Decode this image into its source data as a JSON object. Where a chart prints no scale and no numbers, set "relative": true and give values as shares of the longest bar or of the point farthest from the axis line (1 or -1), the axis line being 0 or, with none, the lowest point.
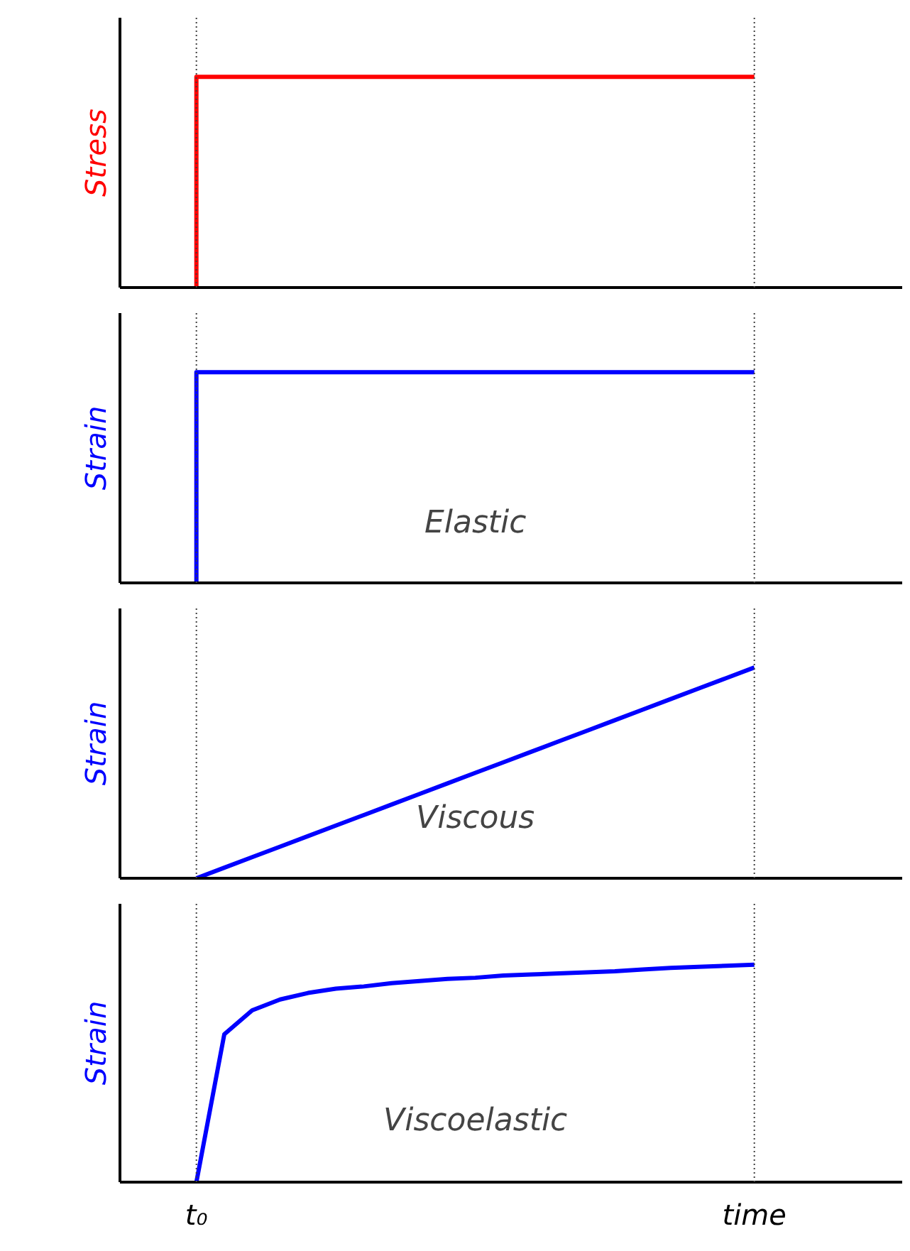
{
  "chart_data": [
    {
      "type": "step",
      "relative": true,
      "ylabel": "Stress",
      "categories": [
        "t₀",
        null,
        null,
        null,
        null,
        null,
        null,
        null,
        null,
        null,
        null,
        null,
        null,
        null,
        null,
        null,
        null,
        null,
        null,
        null,
        "time"
      ],
      "tick_labels": false,
      "series": [
        {
          "color": "#ff0000",
          "values": [
            0,
            1,
            1,
            1,
            1,
            1,
            1,
            1,
            1,
            1,
            1,
            1,
            1,
            1,
            1,
            1,
            1,
            1,
            1,
            1,
            1
          ]
        }
      ],
      "ref_lines": [
        {
          "axis": "x",
          "value": "t₀",
          "color": "#404040",
          "line_style": "dotted"
        },
        {
          "axis": "x",
          "value": "time",
          "color": "#404040",
          "line_style": "dotted"
        }
      ]
    },
    {
      "type": "step",
      "relative": true,
      "ylabel": "Strain",
      "categories": [
        "t₀",
        null,
        null,
        null,
        null,
        null,
        null,
        null,
        null,
        null,
        null,
        null,
        null,
        null,
        null,
        null,
        null,
        null,
        null,
        null,
        "time"
      ],
      "tick_labels": false,
      "annotations": [
        "Elastic"
      ],
      "series": [
        {
          "color": "#0000ff",
          "values": [
            0,
            1,
            1,
            1,
            1,
            1,
            1,
            1,
            1,
            1,
            1,
            1,
            1,
            1,
            1,
            1,
            1,
            1,
            1,
            1,
            1
          ]
        }
      ],
      "ref_lines": [
        {
          "axis": "x",
          "value": "t₀",
          "color": "#404040",
          "line_style": "dotted"
        },
        {
          "axis": "x",
          "value": "time",
          "color": "#404040",
          "line_style": "dotted"
        }
      ]
    },
    {
      "type": "line",
      "relative": true,
      "ylabel": "Strain",
      "categories": [
        "t₀",
        null,
        null,
        null,
        null,
        null,
        null,
        null,
        null,
        null,
        null,
        null,
        null,
        null,
        null,
        null,
        null,
        null,
        null,
        null,
        "time"
      ],
      "tick_labels": false,
      "annotations": [
        "Viscous"
      ],
      "series": [
        {
          "color": "#0000ff",
          "values": [
            0,
            0.05,
            0.1,
            0.15,
            0.2,
            0.25,
            0.3,
            0.35,
            0.4,
            0.45,
            0.5,
            0.55,
            0.6,
            0.65,
            0.7,
            0.75,
            0.8,
            0.85,
            0.9,
            0.95,
            1
          ]
        }
      ],
      "ref_lines": [
        {
          "axis": "x",
          "value": "t₀",
          "color": "#404040",
          "line_style": "dotted"
        },
        {
          "axis": "x",
          "value": "time",
          "color": "#404040",
          "line_style": "dotted"
        }
      ]
    },
    {
      "type": "line",
      "relative": true,
      "ylabel": "Strain",
      "categories": [
        "t₀",
        null,
        null,
        null,
        null,
        null,
        null,
        null,
        null,
        null,
        null,
        null,
        null,
        null,
        null,
        null,
        null,
        null,
        null,
        null,
        "time"
      ],
      "annotations": [
        "Viscoelastic"
      ],
      "series": [
        {
          "color": "#0000ff",
          "values": [
            0,
            0.68,
            0.79,
            0.84,
            0.87,
            0.89,
            0.9,
            0.915,
            0.925,
            0.935,
            0.94,
            0.95,
            0.955,
            0.96,
            0.965,
            0.97,
            0.978,
            0.985,
            0.99,
            0.995,
            1
          ]
        }
      ],
      "ref_lines": [
        {
          "axis": "x",
          "value": "t₀",
          "color": "#404040",
          "line_style": "dotted"
        },
        {
          "axis": "x",
          "value": "time",
          "color": "#404040",
          "line_style": "dotted"
        }
      ]
    }
  ]
}
